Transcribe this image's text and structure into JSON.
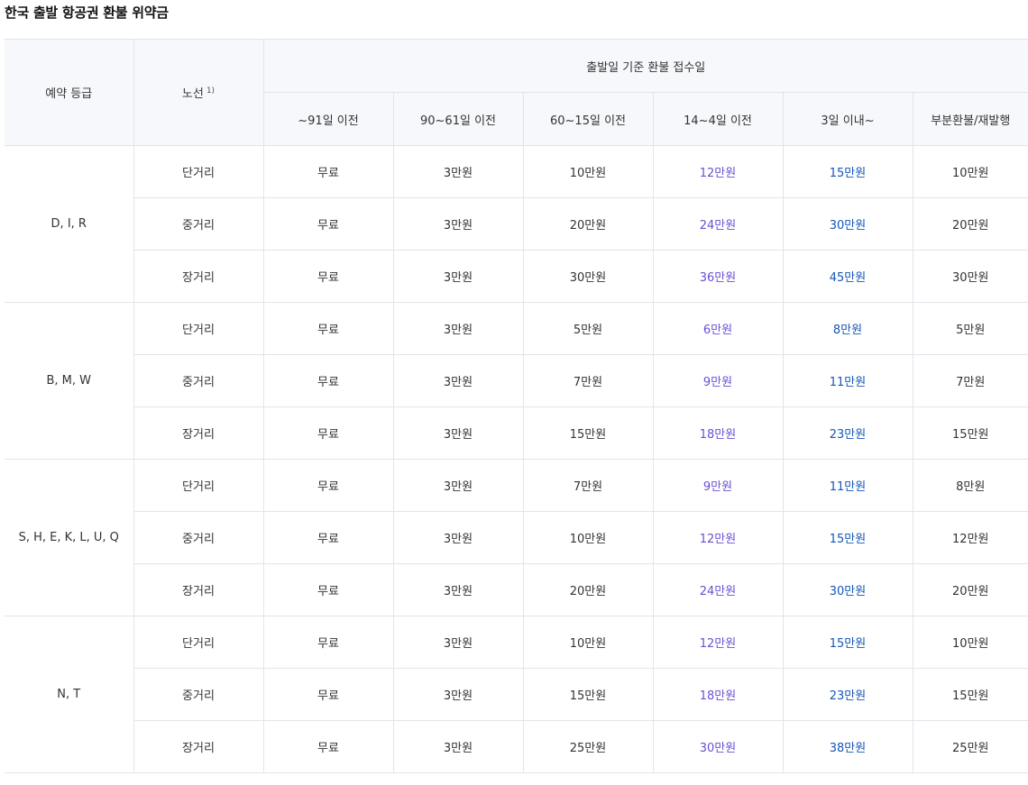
{
  "title": "한국 출발 항공권 환불 위약금",
  "header": {
    "grade": "예약 등급",
    "route": "노선",
    "route_note": "1)",
    "group": "출발일 기준 환불 접수일",
    "periods": [
      "~91일 이전",
      "90~61일 이전",
      "60~15일 이전",
      "14~4일 이전",
      "3일 이내~",
      "부분환불/재발행"
    ]
  },
  "colors": {
    "col_14_4": "#6b4fd3",
    "col_3_days": "#1557b8",
    "header_bg": "#f7f8fb",
    "top_rule": "#1b3a5c"
  },
  "groups": [
    {
      "grade": "D, I, R",
      "rows": [
        {
          "route": "단거리",
          "fees": [
            "무료",
            "3만원",
            "10만원",
            "12만원",
            "15만원",
            "10만원"
          ]
        },
        {
          "route": "중거리",
          "fees": [
            "무료",
            "3만원",
            "20만원",
            "24만원",
            "30만원",
            "20만원"
          ]
        },
        {
          "route": "장거리",
          "fees": [
            "무료",
            "3만원",
            "30만원",
            "36만원",
            "45만원",
            "30만원"
          ]
        }
      ]
    },
    {
      "grade": "B, M, W",
      "rows": [
        {
          "route": "단거리",
          "fees": [
            "무료",
            "3만원",
            "5만원",
            "6만원",
            "8만원",
            "5만원"
          ]
        },
        {
          "route": "중거리",
          "fees": [
            "무료",
            "3만원",
            "7만원",
            "9만원",
            "11만원",
            "7만원"
          ]
        },
        {
          "route": "장거리",
          "fees": [
            "무료",
            "3만원",
            "15만원",
            "18만원",
            "23만원",
            "15만원"
          ]
        }
      ]
    },
    {
      "grade": "S, H, E, K, L, U, Q",
      "rows": [
        {
          "route": "단거리",
          "fees": [
            "무료",
            "3만원",
            "7만원",
            "9만원",
            "11만원",
            "8만원"
          ]
        },
        {
          "route": "중거리",
          "fees": [
            "무료",
            "3만원",
            "10만원",
            "12만원",
            "15만원",
            "12만원"
          ]
        },
        {
          "route": "장거리",
          "fees": [
            "무료",
            "3만원",
            "20만원",
            "24만원",
            "30만원",
            "20만원"
          ]
        }
      ]
    },
    {
      "grade": "N, T",
      "rows": [
        {
          "route": "단거리",
          "fees": [
            "무료",
            "3만원",
            "10만원",
            "12만원",
            "15만원",
            "10만원"
          ]
        },
        {
          "route": "중거리",
          "fees": [
            "무료",
            "3만원",
            "15만원",
            "18만원",
            "23만원",
            "15만원"
          ]
        },
        {
          "route": "장거리",
          "fees": [
            "무료",
            "3만원",
            "25만원",
            "30만원",
            "38만원",
            "25만원"
          ]
        }
      ]
    }
  ]
}
